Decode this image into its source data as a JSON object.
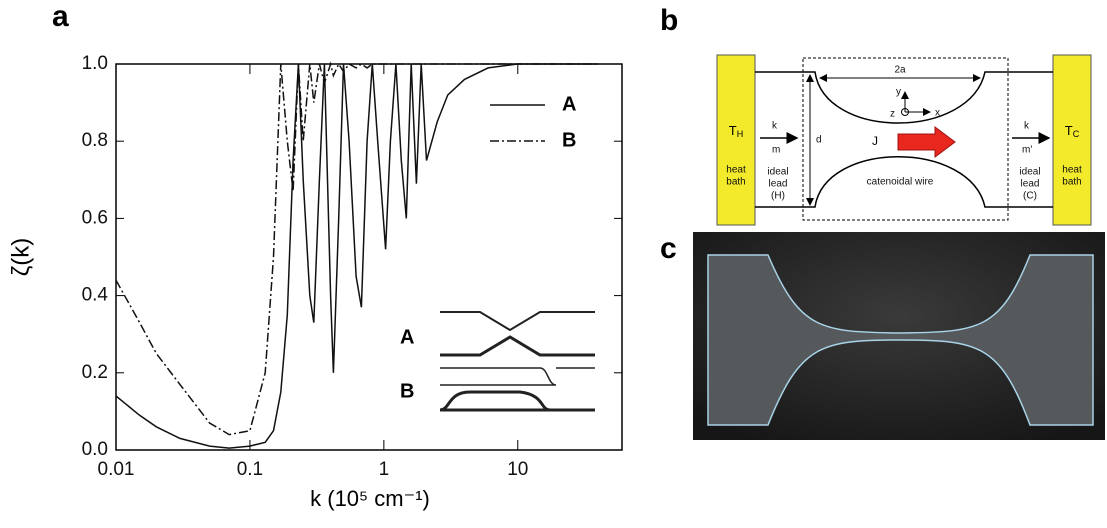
{
  "chart_data": {
    "type": "line",
    "xscale": "log",
    "xlabel": "k (10⁵ cm⁻¹)",
    "ylabel": "ζ(k)",
    "xlim": [
      0.01,
      60
    ],
    "xticks": [
      0.01,
      0.1,
      1,
      10
    ],
    "ylim": [
      0,
      1
    ],
    "yticks": [
      {
        "value": 0,
        "label": "0.0"
      },
      0.2,
      0.4,
      0.6,
      0.8,
      {
        "value": 1,
        "label": "1.0"
      }
    ],
    "legend": "upper right",
    "x": [
      0.01,
      0.015,
      0.02,
      0.03,
      0.05,
      0.07,
      0.1,
      0.13,
      0.15,
      0.17,
      0.19,
      0.21,
      0.23,
      0.25,
      0.28,
      0.3,
      0.33,
      0.36,
      0.4,
      0.42,
      0.46,
      0.5,
      0.55,
      0.62,
      0.68,
      0.75,
      0.82,
      0.9,
      1.03,
      1.12,
      1.23,
      1.35,
      1.47,
      1.6,
      1.75,
      1.9,
      2.08,
      2.5,
      3,
      4,
      6,
      10,
      20,
      40
    ],
    "series": [
      {
        "name": "A",
        "color": "#111111",
        "style": "solid",
        "values": [
          0.14,
          0.09,
          0.06,
          0.03,
          0.01,
          0.005,
          0.01,
          0.02,
          0.05,
          0.15,
          0.35,
          0.75,
          1.0,
          0.7,
          0.4,
          0.33,
          0.7,
          1.0,
          0.4,
          0.2,
          0.6,
          1.0,
          0.8,
          0.45,
          0.37,
          0.8,
          1.0,
          0.8,
          0.52,
          0.8,
          1.0,
          0.75,
          0.6,
          1.0,
          0.69,
          1.0,
          0.75,
          0.85,
          0.92,
          0.96,
          0.99,
          1.0,
          1.0,
          1.0
        ]
      },
      {
        "name": "B",
        "color": "#111111",
        "style": "dashdot",
        "values": [
          0.44,
          0.33,
          0.25,
          0.17,
          0.07,
          0.04,
          0.05,
          0.2,
          0.5,
          1.0,
          0.8,
          0.67,
          1.0,
          0.8,
          1.0,
          0.9,
          1.0,
          0.95,
          1.0,
          0.97,
          1.0,
          0.98,
          1.0,
          0.99,
          1.0,
          0.99,
          1.0,
          1.0,
          1.0,
          1.0,
          1.0,
          1.0,
          1.0,
          1.0,
          1.0,
          1.0,
          1.0,
          1.0,
          1.0,
          1.0,
          1.0,
          1.0,
          1.0,
          1.0
        ]
      }
    ],
    "inset_labels": [
      "A",
      "B"
    ]
  },
  "panel_labels": [
    "a",
    "b",
    "c"
  ],
  "diagram": {
    "left_bath": {
      "t": "T",
      "sub": "H",
      "l1": "heat",
      "l2": "bath"
    },
    "right_bath": {
      "t": "T",
      "sub": "C",
      "l1": "heat",
      "l2": "bath"
    },
    "width": "2a",
    "axis_y": "y",
    "axis_x": "x",
    "axis_z": "z",
    "d": "d",
    "j": "J",
    "k_in": "k",
    "m_in": "m",
    "k_out": "k",
    "m_out": "m'",
    "lead_h": [
      "ideal",
      "lead",
      "(H)"
    ],
    "lead_c": [
      "ideal",
      "lead",
      "(C)"
    ],
    "wire": "catenoidal wire"
  }
}
